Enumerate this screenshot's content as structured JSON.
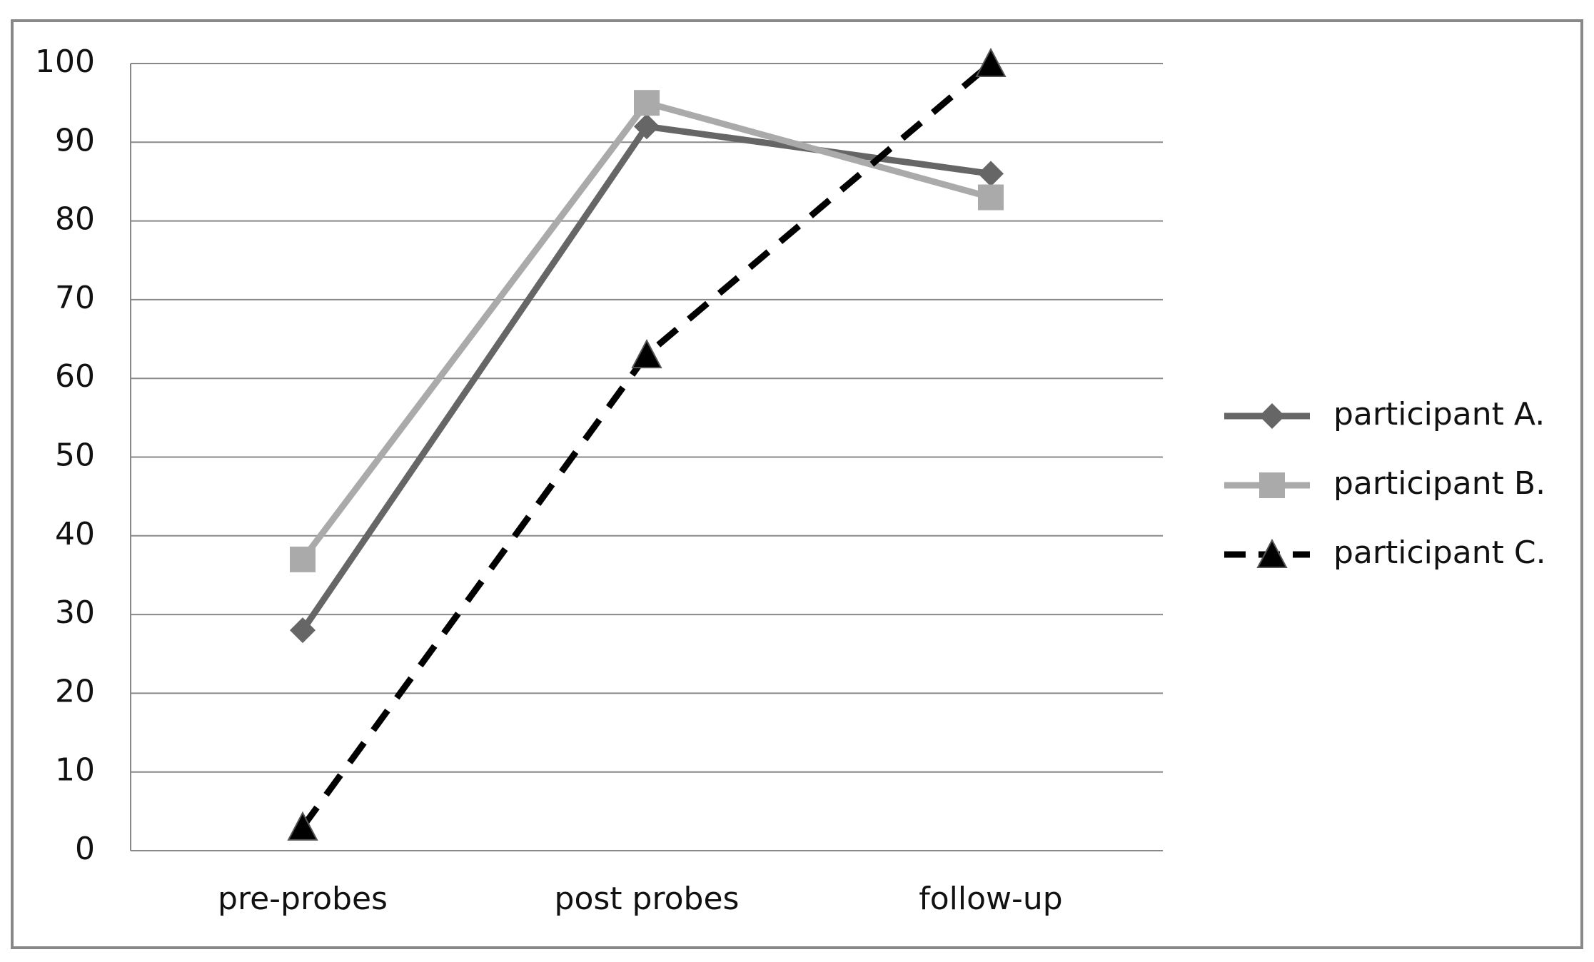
{
  "chart_data": {
    "type": "line",
    "categories": [
      "pre-probes",
      "post probes",
      "follow-up"
    ],
    "series": [
      {
        "name": "participant A.",
        "color": "#666666",
        "marker": "diamond",
        "line_style": "solid",
        "values": [
          28,
          92,
          86
        ]
      },
      {
        "name": "participant B.",
        "color": "#aaaaaa",
        "marker": "square",
        "line_style": "solid",
        "values": [
          37,
          95,
          83
        ]
      },
      {
        "name": "participant C.",
        "color": "#000000",
        "marker": "triangle",
        "line_style": "dashed",
        "values": [
          3,
          63,
          100
        ]
      }
    ],
    "ylim": [
      0,
      100
    ],
    "yticks": [
      0,
      10,
      20,
      30,
      40,
      50,
      60,
      70,
      80,
      90,
      100
    ],
    "grid": true,
    "legend": "right"
  }
}
